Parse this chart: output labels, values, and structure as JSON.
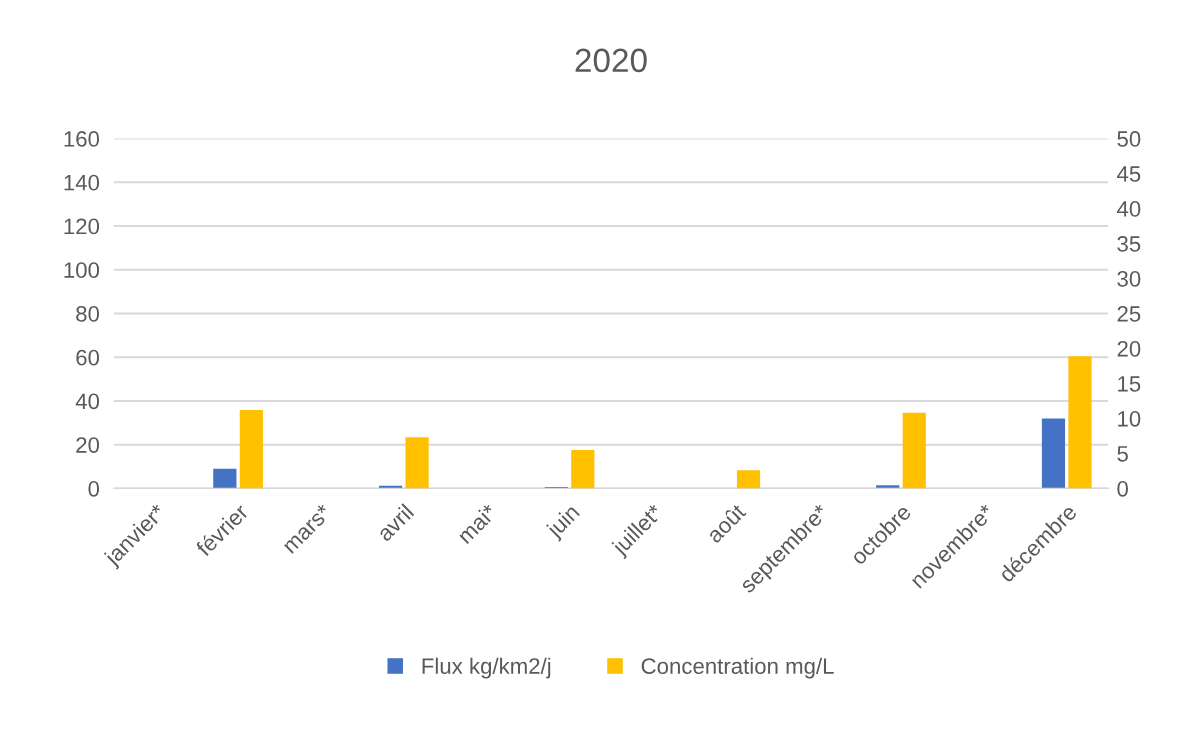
{
  "chart_data": {
    "type": "bar",
    "title": "2020",
    "categories": [
      "janvier*",
      "février",
      "mars*",
      "avril",
      "mai*",
      "juin",
      "juillet*",
      "août",
      "septembre*",
      "octobre",
      "novembre*",
      "décembre"
    ],
    "series": [
      {
        "name": "Flux kg/km2/j",
        "color": "#4472c4",
        "values": [
          null,
          9,
          null,
          1.2,
          null,
          0.7,
          null,
          0,
          null,
          1.5,
          null,
          32
        ]
      },
      {
        "name": "Concentration mg/L",
        "color": "#ffc000",
        "axis": "y2",
        "values": [
          null,
          11.2,
          null,
          7.3,
          null,
          5.5,
          null,
          2.6,
          null,
          10.8,
          null,
          18.9
        ]
      }
    ],
    "ylim": [
      0,
      160
    ],
    "yticks": [
      0,
      20,
      40,
      60,
      80,
      100,
      120,
      140,
      160
    ],
    "y2lim": [
      0,
      50
    ],
    "y2ticks": [
      0,
      5,
      10,
      15,
      20,
      25,
      30,
      35,
      40,
      45,
      50
    ],
    "grid": "y",
    "legend": "bottom"
  }
}
